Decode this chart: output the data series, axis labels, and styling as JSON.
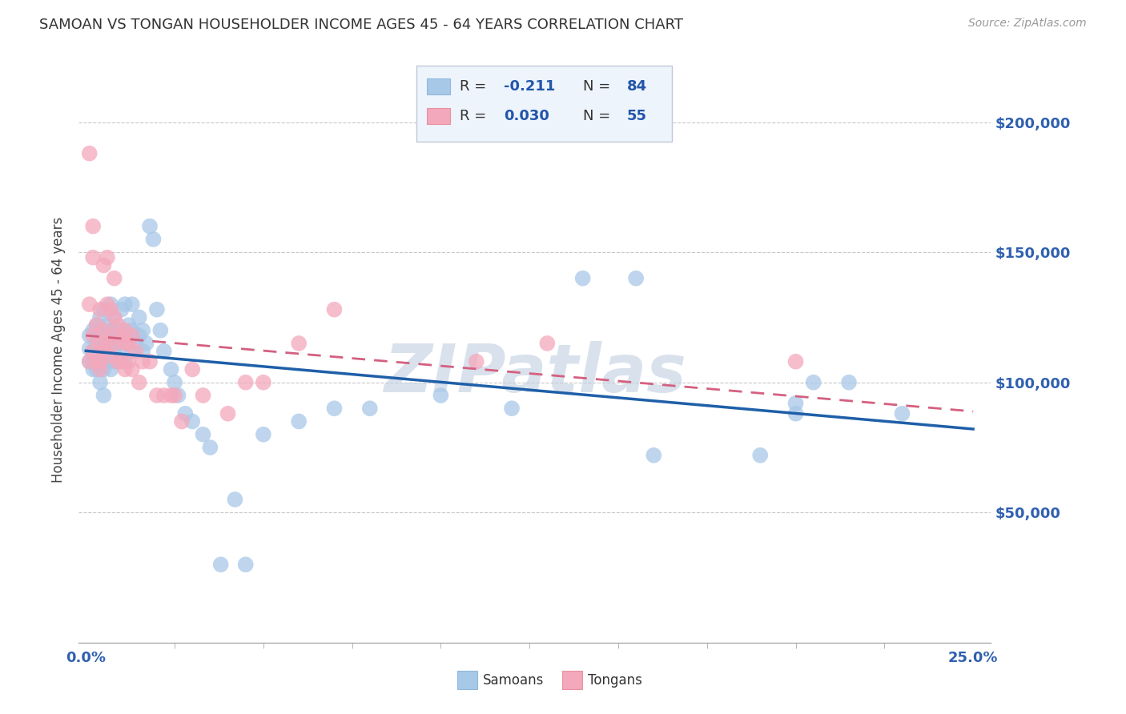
{
  "title": "SAMOAN VS TONGAN HOUSEHOLDER INCOME AGES 45 - 64 YEARS CORRELATION CHART",
  "source": "Source: ZipAtlas.com",
  "ylabel": "Householder Income Ages 45 - 64 years",
  "ytick_labels": [
    "$50,000",
    "$100,000",
    "$150,000",
    "$200,000"
  ],
  "ytick_vals": [
    50000,
    100000,
    150000,
    200000
  ],
  "ylim": [
    0,
    225000
  ],
  "xlim": [
    -0.002,
    0.255
  ],
  "xlabel_ticks_labels": [
    "0.0%",
    "25.0%"
  ],
  "xlabel_ticks_vals": [
    0.0,
    0.25
  ],
  "samoan_color": "#A8C8E8",
  "tongan_color": "#F4A8BC",
  "samoan_line_color": "#1E5FA8",
  "tongan_line_color": "#D46080",
  "legend_box_color": "#EEF4FC",
  "legend_box_edge": "#C0C8D8",
  "background_color": "#FFFFFF",
  "grid_color": "#C8C8C8",
  "watermark_text": "ZIPatlas",
  "watermark_color": "#C0D0E0",
  "samoan_R": -0.211,
  "samoan_N": 84,
  "tongan_R": 0.03,
  "tongan_N": 55,
  "samoan_x": [
    0.001,
    0.001,
    0.001,
    0.002,
    0.002,
    0.002,
    0.002,
    0.003,
    0.003,
    0.003,
    0.003,
    0.003,
    0.004,
    0.004,
    0.004,
    0.004,
    0.004,
    0.005,
    0.005,
    0.005,
    0.005,
    0.005,
    0.006,
    0.006,
    0.006,
    0.006,
    0.006,
    0.007,
    0.007,
    0.007,
    0.007,
    0.008,
    0.008,
    0.008,
    0.008,
    0.009,
    0.009,
    0.009,
    0.01,
    0.01,
    0.01,
    0.011,
    0.011,
    0.012,
    0.012,
    0.013,
    0.013,
    0.013,
    0.014,
    0.015,
    0.015,
    0.016,
    0.016,
    0.017,
    0.018,
    0.019,
    0.02,
    0.021,
    0.022,
    0.024,
    0.025,
    0.026,
    0.028,
    0.03,
    0.033,
    0.035,
    0.038,
    0.042,
    0.045,
    0.05,
    0.06,
    0.07,
    0.08,
    0.1,
    0.12,
    0.14,
    0.155,
    0.16,
    0.19,
    0.2,
    0.2,
    0.205,
    0.215,
    0.23
  ],
  "samoan_y": [
    113000,
    108000,
    118000,
    112000,
    105000,
    120000,
    108000,
    115000,
    110000,
    118000,
    105000,
    122000,
    108000,
    115000,
    112000,
    125000,
    100000,
    118000,
    112000,
    105000,
    128000,
    95000,
    115000,
    110000,
    118000,
    122000,
    108000,
    112000,
    120000,
    105000,
    130000,
    118000,
    112000,
    108000,
    125000,
    120000,
    115000,
    108000,
    128000,
    112000,
    118000,
    130000,
    108000,
    122000,
    115000,
    120000,
    112000,
    130000,
    115000,
    125000,
    118000,
    120000,
    112000,
    115000,
    160000,
    155000,
    128000,
    120000,
    112000,
    105000,
    100000,
    95000,
    88000,
    85000,
    80000,
    75000,
    30000,
    55000,
    30000,
    80000,
    85000,
    90000,
    90000,
    95000,
    90000,
    140000,
    140000,
    72000,
    72000,
    92000,
    88000,
    100000,
    100000,
    88000
  ],
  "tongan_x": [
    0.001,
    0.001,
    0.001,
    0.002,
    0.002,
    0.002,
    0.002,
    0.003,
    0.003,
    0.004,
    0.004,
    0.004,
    0.004,
    0.005,
    0.005,
    0.005,
    0.006,
    0.006,
    0.006,
    0.007,
    0.007,
    0.007,
    0.008,
    0.008,
    0.008,
    0.009,
    0.009,
    0.01,
    0.01,
    0.011,
    0.011,
    0.011,
    0.012,
    0.012,
    0.013,
    0.013,
    0.014,
    0.015,
    0.016,
    0.018,
    0.02,
    0.022,
    0.024,
    0.025,
    0.027,
    0.03,
    0.033,
    0.04,
    0.045,
    0.05,
    0.06,
    0.07,
    0.11,
    0.13,
    0.2
  ],
  "tongan_y": [
    188000,
    130000,
    108000,
    148000,
    160000,
    118000,
    112000,
    122000,
    108000,
    128000,
    115000,
    108000,
    105000,
    145000,
    120000,
    112000,
    148000,
    130000,
    115000,
    128000,
    118000,
    110000,
    140000,
    125000,
    115000,
    122000,
    108000,
    118000,
    108000,
    120000,
    115000,
    105000,
    115000,
    108000,
    118000,
    105000,
    112000,
    100000,
    108000,
    108000,
    95000,
    95000,
    95000,
    95000,
    85000,
    105000,
    95000,
    88000,
    100000,
    100000,
    115000,
    128000,
    108000,
    115000,
    108000
  ]
}
